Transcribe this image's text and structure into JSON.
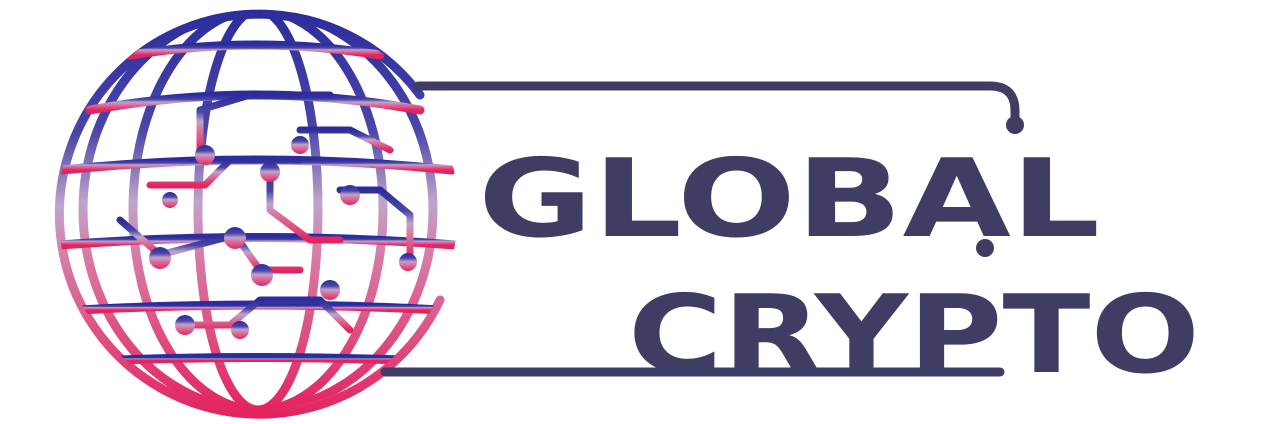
{
  "logo": {
    "line1": "GLOBAL",
    "line2": "CRYPTO"
  },
  "colors": {
    "wordmark": "#3f3d64",
    "globe_top": "#2f2f9e",
    "globe_mid": "#b79ac6",
    "globe_bottom": "#e0306a"
  },
  "icon": "circuit-globe-icon"
}
